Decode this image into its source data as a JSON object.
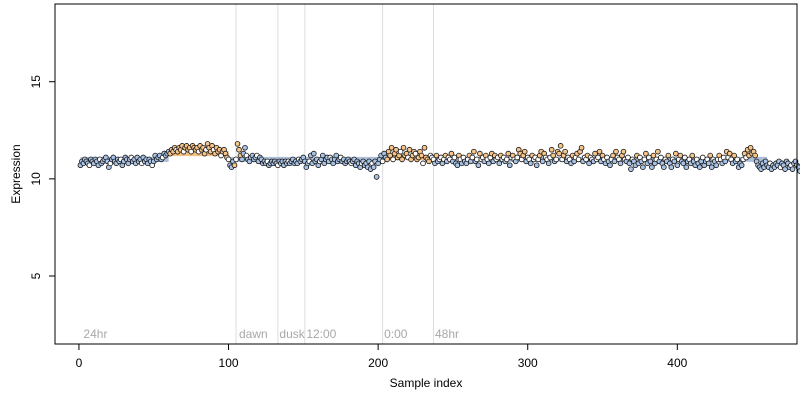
{
  "chart_data": {
    "type": "scatter",
    "xlabel": "Sample index",
    "ylabel": "Expression",
    "xlim": [
      -16,
      480
    ],
    "ylim": [
      1.5,
      19
    ],
    "xticks": [
      "0",
      "100",
      "200",
      "300",
      "400"
    ],
    "yticks": [
      "5",
      "10",
      "15"
    ],
    "annotations": [
      {
        "label": "24hr",
        "x": 3
      },
      {
        "label": "dawn",
        "x": 107
      },
      {
        "label": "dusk",
        "x": 134
      },
      {
        "label": "12:00",
        "x": 152
      },
      {
        "label": "0:00",
        "x": 204
      },
      {
        "label": "48hr",
        "x": 238
      }
    ],
    "vlines": [
      105,
      133,
      151,
      203,
      237
    ],
    "fit_segments": [
      {
        "x": [
          1,
          60
        ],
        "y": 11.0,
        "state": "low"
      },
      {
        "x": [
          60,
          100
        ],
        "y": 11.3,
        "state": "high"
      },
      {
        "x": [
          100,
          205
        ],
        "y": 11.0,
        "state": "low"
      },
      {
        "x": [
          205,
          235
        ],
        "y": 11.1,
        "state": "high"
      },
      {
        "x": [
          235,
          460
        ],
        "y": 11.0,
        "state": "low"
      }
    ],
    "series": [
      {
        "values": [
          10.7,
          10.9,
          10.8,
          11.0,
          10.9,
          10.8,
          10.7,
          11.0,
          10.9,
          10.8,
          11.0,
          10.9,
          10.7,
          11.0,
          10.8,
          10.9,
          11.0,
          11.1,
          10.9,
          10.6,
          10.8,
          11.0,
          11.1,
          10.9,
          10.8,
          11.0,
          10.9,
          11.0,
          10.7,
          10.9,
          11.1,
          11.0,
          10.8,
          11.0,
          11.1,
          10.9,
          11.0,
          10.8,
          11.1,
          10.9,
          11.0,
          10.8,
          11.1,
          10.9,
          11.0,
          10.8,
          11.0,
          10.9,
          10.7,
          10.9,
          11.2,
          11.0,
          11.1,
          11.2,
          11.0,
          11.1,
          11.3,
          11.2,
          11.3,
          11.4,
          11.3,
          11.5,
          11.4,
          11.6,
          11.5,
          11.4,
          11.6,
          11.5,
          11.7,
          11.4,
          11.6,
          11.7,
          11.5,
          11.6,
          11.4,
          11.7,
          11.6,
          11.5,
          11.6,
          11.4,
          11.7,
          11.5,
          11.6,
          11.3,
          11.5,
          11.8,
          11.6,
          11.4,
          11.7,
          11.5,
          11.3,
          11.6,
          11.4,
          11.5,
          11.2,
          11.4,
          11.5,
          11.3,
          11.1,
          11.0,
          10.7,
          10.6,
          10.9,
          10.7,
          11.0,
          11.8,
          11.5,
          11.2,
          11.0,
          11.3,
          11.6,
          11.2,
          11.0,
          10.9,
          11.1,
          11.2,
          11.0,
          11.1,
          11.2,
          10.9,
          11.1,
          11.0,
          10.8,
          10.9,
          10.8,
          10.9,
          10.7,
          10.8,
          10.9,
          10.8,
          10.9,
          10.8,
          10.7,
          10.9,
          10.8,
          10.9,
          10.7,
          10.9,
          10.8,
          10.9,
          10.8,
          10.9,
          11.0,
          10.8,
          10.9,
          10.8,
          11.0,
          10.9,
          11.0,
          11.1,
          10.9,
          10.6,
          10.8,
          10.9,
          11.2,
          10.8,
          11.3,
          10.9,
          11.0,
          10.7,
          10.9,
          11.0,
          11.2,
          10.8,
          11.0,
          11.1,
          10.9,
          11.1,
          11.0,
          10.8,
          11.0,
          11.2,
          10.9,
          11.0,
          11.1,
          10.9,
          11.0,
          10.8,
          10.9,
          11.0,
          10.9,
          10.8,
          10.9,
          11.0,
          10.7,
          10.9,
          10.8,
          10.6,
          10.8,
          10.9,
          10.7,
          10.8,
          10.6,
          10.9,
          10.5,
          10.8,
          10.6,
          10.9,
          10.1,
          10.8,
          11.0,
          11.2,
          10.9,
          11.3,
          11.1,
          11.0,
          11.4,
          11.2,
          11.6,
          11.0,
          11.3,
          11.5,
          11.1,
          11.2,
          11.4,
          11.0,
          11.6,
          11.2,
          11.3,
          11.1,
          11.5,
          11.0,
          11.2,
          11.4,
          11.3,
          11.0,
          11.1,
          11.4,
          11.2,
          10.8,
          11.6,
          11.1,
          11.0,
          10.9,
          11.2,
          11.1,
          11.0,
          10.8,
          11.2,
          10.9,
          11.0,
          11.1,
          10.8,
          11.0,
          11.2,
          10.9,
          11.1,
          11.0,
          11.3,
          10.9,
          11.1,
          10.8,
          10.7,
          11.2,
          11.0,
          10.8,
          11.1,
          10.9,
          10.8,
          11.0,
          11.2,
          10.9,
          11.1,
          11.4,
          10.9,
          11.0,
          10.7,
          11.3,
          11.0,
          11.1,
          10.9,
          11.2,
          11.0,
          10.8,
          11.1,
          11.3,
          10.9,
          11.2,
          11.0,
          11.1,
          10.8,
          11.2,
          11.0,
          11.1,
          10.9,
          11.0,
          11.3,
          10.7,
          11.1,
          11.2,
          11.0,
          10.9,
          11.1,
          11.5,
          11.3,
          11.0,
          11.2,
          11.4,
          10.9,
          11.1,
          11.0,
          10.8,
          11.2,
          11.0,
          11.1,
          10.7,
          11.0,
          11.2,
          11.4,
          10.9,
          11.3,
          11.1,
          11.0,
          10.8,
          11.1,
          11.5,
          11.2,
          10.9,
          11.0,
          11.4,
          11.3,
          11.7,
          11.0,
          11.2,
          11.4,
          10.9,
          11.1,
          11.0,
          10.8,
          11.2,
          10.9,
          11.1,
          11.3,
          11.0,
          11.4,
          11.6,
          10.9,
          11.1,
          11.0,
          11.2,
          10.8,
          11.1,
          11.0,
          10.9,
          11.3,
          11.0,
          11.1,
          11.4,
          10.9,
          11.2,
          11.0,
          10.8,
          11.1,
          10.9,
          10.7,
          11.0,
          11.2,
          10.9,
          11.4,
          11.1,
          11.0,
          10.8,
          11.2,
          11.4,
          11.0,
          10.9,
          11.1,
          10.8,
          10.5,
          11.0,
          10.9,
          10.7,
          11.2,
          10.8,
          11.1,
          10.9,
          10.6,
          11.0,
          11.3,
          10.8,
          11.1,
          10.9,
          10.6,
          11.2,
          10.8,
          11.0,
          11.4,
          10.9,
          11.1,
          10.8,
          10.6,
          11.0,
          10.9,
          11.2,
          10.8,
          10.6,
          11.0,
          10.9,
          11.3,
          10.7,
          11.0,
          11.2,
          10.9,
          10.8,
          11.1,
          10.6,
          10.9,
          11.0,
          10.8,
          11.2,
          10.9,
          10.7,
          11.0,
          10.8,
          10.6,
          10.9,
          11.1,
          10.7,
          10.9,
          11.0,
          10.8,
          11.2,
          10.6,
          11.0,
          10.9,
          10.7,
          11.0,
          11.2,
          11.0,
          10.8,
          11.1,
          10.9,
          11.4,
          11.1,
          11.3,
          11.0,
          10.8,
          11.2,
          10.9,
          11.0,
          10.6,
          10.8,
          10.7,
          11.0,
          11.3,
          11.1,
          11.5,
          11.2,
          11.6,
          11.3,
          11.4,
          11.2,
          10.9,
          10.7,
          10.6,
          10.5,
          10.8,
          10.6,
          10.9,
          10.7,
          10.6,
          10.8,
          10.5,
          10.7,
          10.6,
          10.8,
          10.7,
          10.9,
          10.6,
          10.8,
          10.7,
          10.5,
          10.9,
          10.8,
          10.6,
          10.7,
          10.5,
          10.8,
          10.9,
          10.7,
          10.6,
          10.4
        ],
        "state_runs": [
          [
            1,
            60,
            "low"
          ],
          [
            61,
            100,
            "high"
          ],
          [
            101,
            103,
            "low"
          ],
          [
            104,
            108,
            "high"
          ],
          [
            109,
            205,
            "low"
          ],
          [
            206,
            235,
            "high"
          ],
          [
            236,
            460,
            "mixed"
          ]
        ]
      }
    ],
    "colors": {
      "low_fill": "#a9c3e6",
      "high_fill": "#f7c48a",
      "mid_fill": "#ffffff",
      "outline": "#111111",
      "fit_low": "#9eb2d2",
      "fit_high": "#f2b36a",
      "vline": "#dddddd"
    }
  }
}
